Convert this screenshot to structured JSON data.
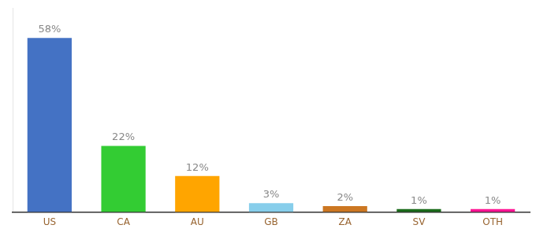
{
  "chart_data": {
    "type": "bar",
    "categories": [
      "US",
      "CA",
      "AU",
      "GB",
      "ZA",
      "SV",
      "OTH"
    ],
    "values": [
      58,
      22,
      12,
      3,
      2,
      1,
      1
    ],
    "value_labels": [
      "58%",
      "22%",
      "12%",
      "3%",
      "2%",
      "1%",
      "1%"
    ],
    "colors": [
      "#4472C4",
      "#33CC33",
      "#FFA500",
      "#87CEEB",
      "#CC7722",
      "#1A6B1A",
      "#FF1493"
    ],
    "ylim": [
      0,
      68
    ],
    "grid": false,
    "data_labels": true,
    "tick_labels": "x"
  }
}
